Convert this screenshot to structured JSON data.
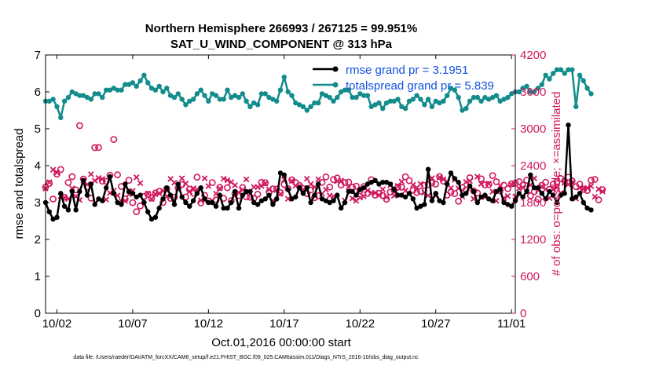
{
  "chart_data": {
    "type": "line",
    "title": "Northern Hemisphere 266993 / 267125 = 99.951%",
    "subtitle": "SAT_U_WIND_COMPONENT @ 313 hPa",
    "xlabel": "Oct.01,2016 00:00:00 start",
    "ylabel": "rmse and totalspread",
    "y2label": "# of obs: o=possible; ×=assimilated",
    "x_tick_labels": [
      "10/02",
      "10/07",
      "10/12",
      "10/17",
      "10/22",
      "10/27",
      "11/01"
    ],
    "x_tick_days": [
      1,
      6,
      11,
      16,
      21,
      26,
      31
    ],
    "xlim_days": [
      0.25,
      31.25
    ],
    "x_step_days": 0.25,
    "ylim": [
      0,
      7
    ],
    "y_ticks": [
      0,
      1,
      2,
      3,
      4,
      5,
      6,
      7
    ],
    "y2lim": [
      0,
      4200
    ],
    "y2_ticks": [
      0,
      600,
      1200,
      1800,
      2400,
      3000,
      3600,
      4200
    ],
    "grid": false,
    "legend_position": "top-right",
    "series": [
      {
        "name": "rmse grand pr = 3.1951",
        "axis": "left",
        "color": "#000000",
        "values": [
          3.0,
          2.75,
          2.55,
          2.6,
          3.25,
          2.9,
          2.8,
          3.3,
          2.8,
          3.3,
          3.6,
          3.2,
          3.5,
          2.95,
          3.1,
          3.05,
          3.4,
          3.7,
          3.25,
          3.0,
          2.95,
          3.5,
          3.3,
          3.25,
          3.15,
          3.2,
          3.0,
          2.75,
          2.55,
          2.6,
          2.85,
          3.1,
          3.4,
          3.2,
          2.95,
          3.5,
          3.15,
          3.0,
          2.9,
          3.05,
          3.25,
          3.4,
          3.1,
          3.0,
          3.0,
          2.9,
          3.2,
          2.85,
          2.85,
          3.0,
          3.3,
          2.85,
          3.2,
          3.3,
          3.3,
          3.0,
          2.95,
          3.05,
          3.1,
          3.2,
          2.95,
          3.1,
          3.8,
          3.75,
          3.35,
          3.1,
          3.15,
          3.4,
          3.25,
          3.4,
          3.0,
          3.2,
          3.5,
          3.1,
          3.05,
          3.0,
          3.05,
          3.2,
          2.85,
          3.0,
          3.3,
          3.3,
          3.2,
          3.35,
          3.4,
          3.5,
          3.55,
          3.6,
          3.5,
          3.55,
          3.55,
          3.5,
          3.35,
          3.2,
          3.2,
          3.15,
          3.25,
          3.1,
          2.85,
          2.9,
          2.95,
          3.9,
          3.05,
          3.25,
          3.05,
          3.0,
          3.5,
          3.8,
          3.65,
          3.55,
          3.2,
          3.25,
          3.45,
          3.3,
          3.0,
          3.15,
          3.2,
          3.1,
          3.05,
          3.3,
          3.35,
          3.0,
          2.95,
          2.9,
          3.05,
          3.25,
          3.15,
          3.3,
          3.75,
          3.4,
          3.4,
          3.25,
          3.1,
          3.3,
          3.2,
          3.0,
          3.2,
          3.25,
          5.1,
          3.1,
          3.15,
          3.25,
          3.0,
          2.85,
          2.8
        ],
        "missing": []
      },
      {
        "name": "totalspread grand pr = 5.839",
        "axis": "left",
        "color": "#138c8c",
        "values": [
          5.75,
          5.75,
          5.8,
          5.6,
          5.3,
          5.75,
          5.85,
          6.0,
          5.95,
          5.9,
          5.9,
          5.85,
          5.8,
          5.95,
          5.95,
          5.85,
          6.05,
          6.05,
          6.1,
          6.05,
          6.05,
          6.2,
          6.2,
          6.25,
          6.15,
          6.3,
          6.45,
          6.25,
          6.1,
          6.05,
          6.15,
          6.0,
          6.1,
          5.9,
          5.85,
          5.95,
          5.8,
          5.65,
          5.75,
          5.8,
          5.95,
          6.05,
          5.9,
          5.75,
          5.95,
          5.9,
          5.8,
          5.8,
          6.05,
          5.85,
          5.9,
          5.85,
          5.95,
          5.75,
          5.6,
          5.7,
          5.65,
          5.95,
          5.95,
          5.85,
          5.8,
          5.75,
          6.05,
          6.4,
          6.0,
          5.9,
          5.7,
          5.65,
          5.6,
          5.5,
          5.6,
          5.7,
          5.7,
          5.95,
          5.9,
          5.85,
          5.75,
          5.85,
          6.0,
          6.05,
          6.05,
          5.85,
          5.85,
          5.95,
          5.9,
          5.9,
          5.6,
          5.65,
          5.7,
          5.55,
          5.7,
          5.75,
          5.75,
          5.8,
          5.6,
          5.55,
          5.75,
          5.8,
          5.9,
          5.8,
          5.65,
          5.8,
          5.6,
          5.75,
          5.7,
          5.75,
          5.9,
          6.1,
          6.05,
          5.85,
          5.5,
          5.55,
          5.75,
          5.85,
          5.85,
          5.75,
          5.85,
          5.8,
          5.85,
          5.9,
          5.75,
          5.8,
          5.85,
          5.95,
          6.0,
          6.0,
          6.1,
          6.15,
          6.0,
          6.0,
          6.1,
          6.2,
          6.45,
          6.35,
          6.5,
          6.6,
          6.6,
          6.5,
          6.6,
          6.6,
          5.6,
          6.45,
          6.3,
          6.1,
          5.95
        ],
        "missing": []
      },
      {
        "name": "possible",
        "axis": "right",
        "color": "#d1185f",
        "marker": "o",
        "values": [
          2051,
          2111,
          1857,
          2262,
          2338,
          1888,
          2126,
          2221,
          2005,
          3051,
          2183,
          2055,
          1871,
          2693,
          2695,
          2148,
          2146,
          2244,
          2827,
          2251,
          2062,
          1860,
          2163,
          1799,
          1652,
          1744,
          1902,
          1934,
          1872,
          1956,
          1981,
          1801,
          2023,
          1869,
          1887,
          2040,
          2093,
          1891,
          2016,
          1955,
          2212,
          1795,
          1917,
          1826,
          2124,
          1842,
          2046,
          1868,
          2043,
          1829,
          1944,
          1913,
          2045,
          1893,
          1887,
          1870,
          1935,
          2128,
          2124,
          1971,
          2023,
          2020,
          1961,
          2095,
          2029,
          2170,
          2126,
          2079,
          2030,
          1945,
          2005,
          1879,
          1911,
          2128,
          2218,
          2053,
          2174,
          2198,
          2086,
          2126,
          2132,
          2049,
          2067,
          1990,
          2060,
          1948,
          2172,
          1921,
          1949,
          1915,
          1853,
          1971,
          2001,
          2051,
          2049,
          2220,
          2156,
          2001,
          1963,
          1982,
          2080,
          2093,
          2119,
          2100,
          2223,
          2149,
          1921,
          1969,
          1945,
          1822,
          2045,
          2005,
          2204,
          1989,
          1956,
          2186,
          2088,
          2092,
          2239,
          2138,
          1989,
          2082,
          2026,
          2105,
          2118,
          2140,
          2083,
          2162,
          1911,
          1978,
          1855,
          2081,
          2129,
          2013,
          2098,
          2139,
          2191,
          2154,
          2212,
          2154,
          2061,
          2097,
          2014,
          1996,
          2161,
          2177,
          1845,
          2011
        ]
      },
      {
        "name": "assimilated",
        "axis": "right",
        "color": "#d1185f",
        "marker": "x",
        "values": [
          2030,
          2130,
          2333,
          2289,
          1905,
          1882,
          1858,
          2031,
          1899,
          1842,
          2155,
          2095,
          2260,
          2156,
          2200,
          2183,
          1849,
          1956,
          1992,
          1914,
          1828,
          1828,
          1934,
          1990,
          2210,
          2116,
          1838,
          1947,
          1859,
          1937,
          1949,
          1991,
          1901,
          2184,
          2123,
          2021,
          2193,
          2108,
          1980,
          2032,
          2012,
          1836,
          2193,
          2067,
          1834,
          1945,
          2031,
          2187,
          2163,
          2132,
          2081,
          1964,
          2007,
          2177,
          1947,
          2053,
          2051,
          2071,
          2111,
          2012,
          1828,
          2004,
          1938,
          2176,
          1861,
          2151,
          2074,
          2067,
          2011,
          2187,
          2100,
          2051,
          2179,
          1944,
          2010,
          1913,
          1900,
          2148,
          2156,
          1834,
          2053,
          1867,
          1830,
          1881,
          1901,
          1995,
          1958,
          1958,
          1921,
          2015,
          1890,
          2084,
          1911,
          2070,
          2141,
          1993,
          1940,
          2087,
          2041,
          2103,
          1960,
          1914,
          2196,
          1910,
          2210,
          2178,
          2127,
          2036,
          2169,
          2031,
          1897,
          2135,
          2151,
          1861,
          2220,
          2105,
          1889,
          2108,
          1977,
          1828,
          2071,
          1873,
          1906,
          2095,
          1898,
          2030,
          2044,
          1976,
          2086,
          2193,
          2004,
          2062,
          2018,
          1872,
          2014,
          2045,
          1956,
          2118,
          2095,
          2126,
          1866,
          2042,
          2020,
          2038,
          2068,
          1895,
          2019,
          1980
        ]
      }
    ],
    "footer": "data file: /Users/raeder/DAI/ATM_forcXX/CAM6_setup/f.e21.FHIST_BGC.f09_025.CAM6assim.011/Diags_NTrS_2016-10/obs_diag_output.nc"
  },
  "colors": {
    "rmse": "#000000",
    "spread": "#138c8c",
    "obs": "#d1185f",
    "legend_text": "#1050e0"
  }
}
